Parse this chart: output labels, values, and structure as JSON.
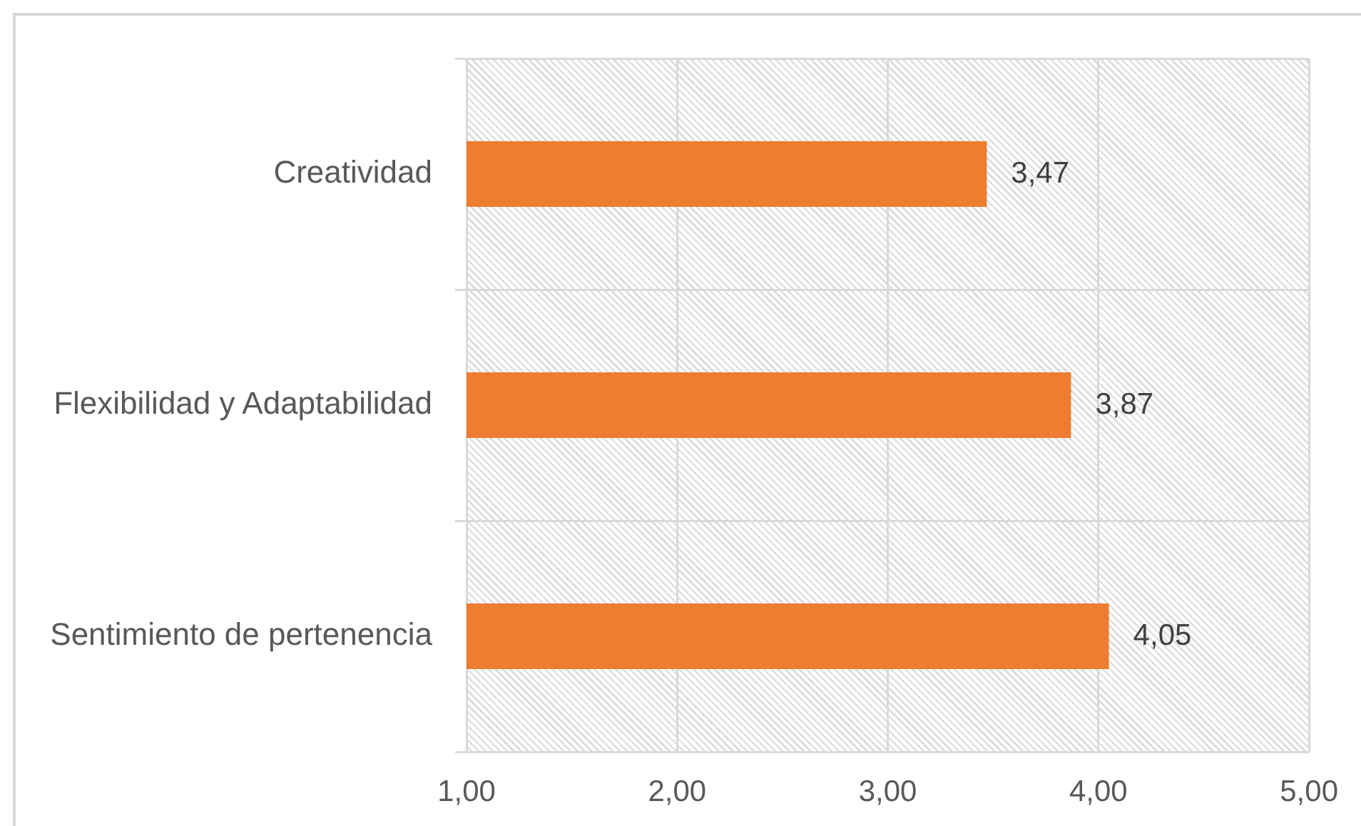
{
  "chart_data": {
    "type": "bar",
    "orientation": "horizontal",
    "categories": [
      "Creatividad",
      "Flexibilidad y Adaptabilidad",
      "Sentimiento de pertenencia"
    ],
    "values": [
      3.47,
      3.87,
      4.05
    ],
    "color": "#ed7d31",
    "value_labels": [
      "3,47",
      "3,87",
      "4,05"
    ],
    "xlim": [
      1,
      5
    ],
    "xticks": [
      {
        "value": 1,
        "label": "1,00"
      },
      {
        "value": 2,
        "label": "2,00"
      },
      {
        "value": 3,
        "label": "3,00"
      },
      {
        "value": 4,
        "label": "4,00"
      },
      {
        "value": 5,
        "label": "5,00"
      }
    ],
    "grid": true
  }
}
